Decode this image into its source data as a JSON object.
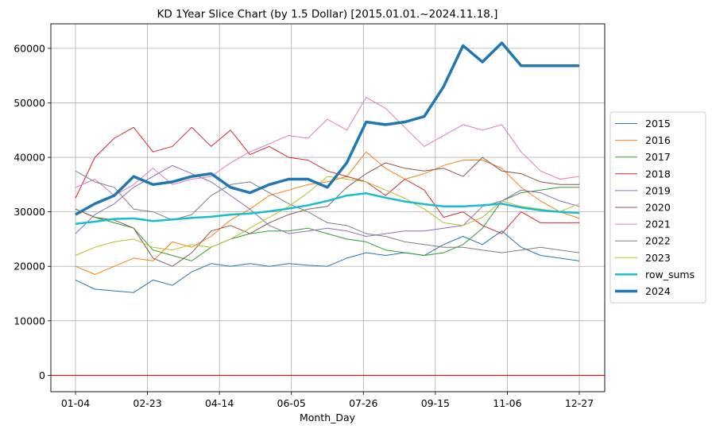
{
  "chart_data": {
    "type": "line",
    "title": "KD 1Year Slice Chart (by 1.5 Dollar) [2015.01.01.~2024.11.18.]",
    "xlabel": "Month_Day",
    "ylabel": "",
    "x_ticks": [
      "01-04",
      "02-23",
      "04-14",
      "06-05",
      "07-26",
      "09-15",
      "11-06",
      "12-27"
    ],
    "y_ticks": [
      0,
      10000,
      20000,
      30000,
      40000,
      50000,
      60000
    ],
    "ylim": [
      -3000,
      64500
    ],
    "grid": true,
    "legend_position": "center-right",
    "reference_line": {
      "y": 0,
      "color": "#ff0000"
    },
    "x_points": [
      "01-04",
      "01-18",
      "02-01",
      "02-15",
      "03-01",
      "03-15",
      "03-29",
      "04-12",
      "04-26",
      "05-10",
      "05-24",
      "06-07",
      "06-21",
      "07-05",
      "07-19",
      "08-02",
      "08-16",
      "08-30",
      "09-13",
      "09-27",
      "10-11",
      "10-25",
      "11-08",
      "11-22",
      "12-06",
      "12-20",
      "12-31"
    ],
    "series": [
      {
        "name": "2015",
        "color": "#1f77b4",
        "width": 1,
        "values": [
          17500,
          15800,
          15500,
          15200,
          17500,
          16500,
          19000,
          20500,
          20000,
          20500,
          20000,
          20500,
          20200,
          20000,
          21500,
          22500,
          22000,
          22500,
          22000,
          24000,
          25500,
          24000,
          26500,
          23500,
          22000,
          21500,
          21000
        ]
      },
      {
        "name": "2016",
        "color": "#ff7f0e",
        "width": 1,
        "values": [
          20000,
          18500,
          20000,
          21500,
          21000,
          24500,
          23500,
          25500,
          28500,
          30500,
          33000,
          34000,
          35000,
          35500,
          36500,
          41000,
          38000,
          36000,
          37000,
          38500,
          39500,
          39500,
          38000,
          34500,
          32000,
          30000,
          28800
        ]
      },
      {
        "name": "2017",
        "color": "#2ca02c",
        "width": 1,
        "values": [
          30500,
          29000,
          28000,
          27000,
          23000,
          22000,
          21000,
          23500,
          25000,
          26000,
          26500,
          26500,
          27000,
          26000,
          25000,
          24500,
          23000,
          22500,
          22000,
          22500,
          24000,
          27000,
          32000,
          33500,
          34000,
          34500,
          34500
        ]
      },
      {
        "name": "2018",
        "color": "#d62728",
        "width": 1,
        "values": [
          32500,
          40000,
          43500,
          45500,
          41000,
          42000,
          45500,
          42000,
          45000,
          40500,
          42000,
          40000,
          39500,
          37500,
          36500,
          35500,
          33000,
          36000,
          34000,
          29000,
          30000,
          27500,
          26000,
          30000,
          28000,
          28000,
          28000
        ]
      },
      {
        "name": "2019",
        "color": "#9467bd",
        "width": 1,
        "values": [
          26000,
          29500,
          31500,
          34500,
          36500,
          38500,
          37000,
          35500,
          33000,
          30500,
          27500,
          26000,
          26500,
          27000,
          26500,
          25500,
          26000,
          26500,
          26500,
          27000,
          27500,
          31000,
          32000,
          34000,
          33500,
          32000,
          31000
        ]
      },
      {
        "name": "2020",
        "color": "#8c564b",
        "width": 1,
        "values": [
          30500,
          29000,
          28500,
          27000,
          21500,
          20000,
          22500,
          26500,
          27500,
          26000,
          28000,
          29500,
          30500,
          31000,
          34500,
          37000,
          39000,
          38000,
          37500,
          38000,
          36500,
          40000,
          37500,
          37000,
          35500,
          35000,
          35000
        ]
      },
      {
        "name": "2021",
        "color": "#e377c2",
        "width": 1,
        "values": [
          34500,
          36000,
          33000,
          35000,
          38000,
          35000,
          36000,
          36500,
          39000,
          41000,
          42500,
          44000,
          43500,
          47000,
          45000,
          51000,
          49000,
          45500,
          42000,
          44000,
          46000,
          45000,
          46000,
          41000,
          37500,
          36000,
          36500
        ]
      },
      {
        "name": "2022",
        "color": "#7f7f7f",
        "width": 1,
        "values": [
          37500,
          35500,
          34500,
          30500,
          30000,
          28500,
          29500,
          33000,
          35000,
          35500,
          33500,
          31500,
          30000,
          28000,
          27500,
          26000,
          25500,
          24500,
          24000,
          23500,
          23500,
          23000,
          22500,
          23000,
          23500,
          23000,
          22500
        ]
      },
      {
        "name": "2023",
        "color": "#bcbd22",
        "width": 1,
        "values": [
          22000,
          23500,
          24500,
          25000,
          23500,
          23000,
          24000,
          23500,
          25000,
          27000,
          29000,
          31000,
          33500,
          36500,
          36000,
          35500,
          34000,
          32500,
          30500,
          28000,
          27500,
          29000,
          32000,
          31000,
          30500,
          30000,
          31500
        ]
      },
      {
        "name": "row_sums",
        "color": "#17becf",
        "width": 2.5,
        "values": [
          27800,
          28200,
          28700,
          28800,
          28300,
          28600,
          28900,
          29100,
          29500,
          29700,
          30100,
          30600,
          31200,
          32000,
          33000,
          33400,
          32600,
          31900,
          31400,
          31000,
          31000,
          31200,
          31500,
          30800,
          30300,
          30000,
          29800
        ]
      },
      {
        "name": "2024",
        "color": "#1f77b4",
        "width": 3.5,
        "values": [
          29500,
          31500,
          33000,
          36500,
          35000,
          35500,
          36500,
          37000,
          34500,
          33500,
          35000,
          36000,
          36000,
          34500,
          39000,
          46500,
          46000,
          46500,
          47500,
          53000,
          60500,
          57500,
          61000,
          56800,
          56800,
          56800,
          56800
        ]
      }
    ]
  }
}
